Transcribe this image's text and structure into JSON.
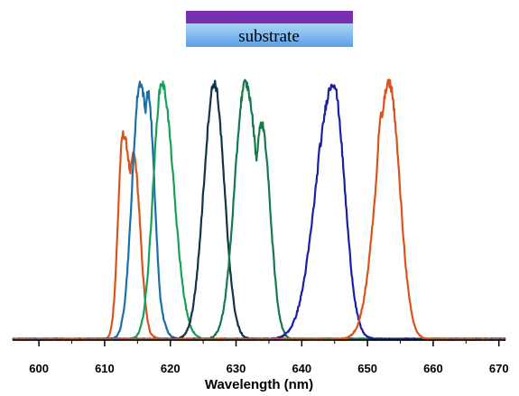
{
  "chart_data": {
    "type": "line",
    "title": "",
    "xlabel": "Wavelength (nm)",
    "ylabel": "",
    "xlim": [
      596,
      671
    ],
    "ylim": [
      0,
      1.05
    ],
    "xticks": [
      600,
      610,
      620,
      630,
      640,
      650,
      660,
      670
    ],
    "grid": false,
    "legend": "none",
    "inset": {
      "label": "substrate",
      "film_color": "#7a2fb0",
      "substrate_color_top": "#9fd0f5",
      "substrate_color_bottom": "#5fa6e8"
    },
    "series": [
      {
        "color": "#d9541a",
        "peak_x": 612.8,
        "sigma_left": 0.75,
        "sigma_right": 1.6,
        "peak": 0.8,
        "shoulders": [
          {
            "x": 614.4,
            "amp": 0.72,
            "sigma": 1.0
          }
        ]
      },
      {
        "color": "#1a6fa8",
        "peak_x": 615.4,
        "sigma_left": 1.2,
        "sigma_right": 1.6,
        "peak": 1.0,
        "shoulders": [
          {
            "x": 616.6,
            "amp": 0.96,
            "sigma": 1.0
          }
        ]
      },
      {
        "color": "#16a05a",
        "peak_x": 618.7,
        "sigma_left": 1.3,
        "sigma_right": 1.8,
        "peak": 1.0,
        "shoulders": []
      },
      {
        "color": "#10344a",
        "peak_x": 626.7,
        "sigma_left": 1.6,
        "sigma_right": 1.5,
        "peak": 1.0,
        "shoulders": []
      },
      {
        "color": "#16794a",
        "peak_x": 631.4,
        "sigma_left": 1.6,
        "sigma_right": 2.0,
        "peak": 1.0,
        "shoulders": [
          {
            "x": 633.9,
            "amp": 0.84,
            "sigma": 1.3
          }
        ]
      },
      {
        "color": "#1c20a0",
        "peak_x": 644.8,
        "sigma_left": 2.6,
        "sigma_right": 1.7,
        "peak": 1.0,
        "shoulders": [
          {
            "x": 643.1,
            "amp": 0.78,
            "sigma": 1.2
          }
        ]
      },
      {
        "color": "#d9541a",
        "peak_x": 653.3,
        "sigma_left": 2.0,
        "sigma_right": 1.6,
        "peak": 1.0,
        "shoulders": [
          {
            "x": 652.1,
            "amp": 0.87,
            "sigma": 0.9
          }
        ]
      }
    ]
  }
}
